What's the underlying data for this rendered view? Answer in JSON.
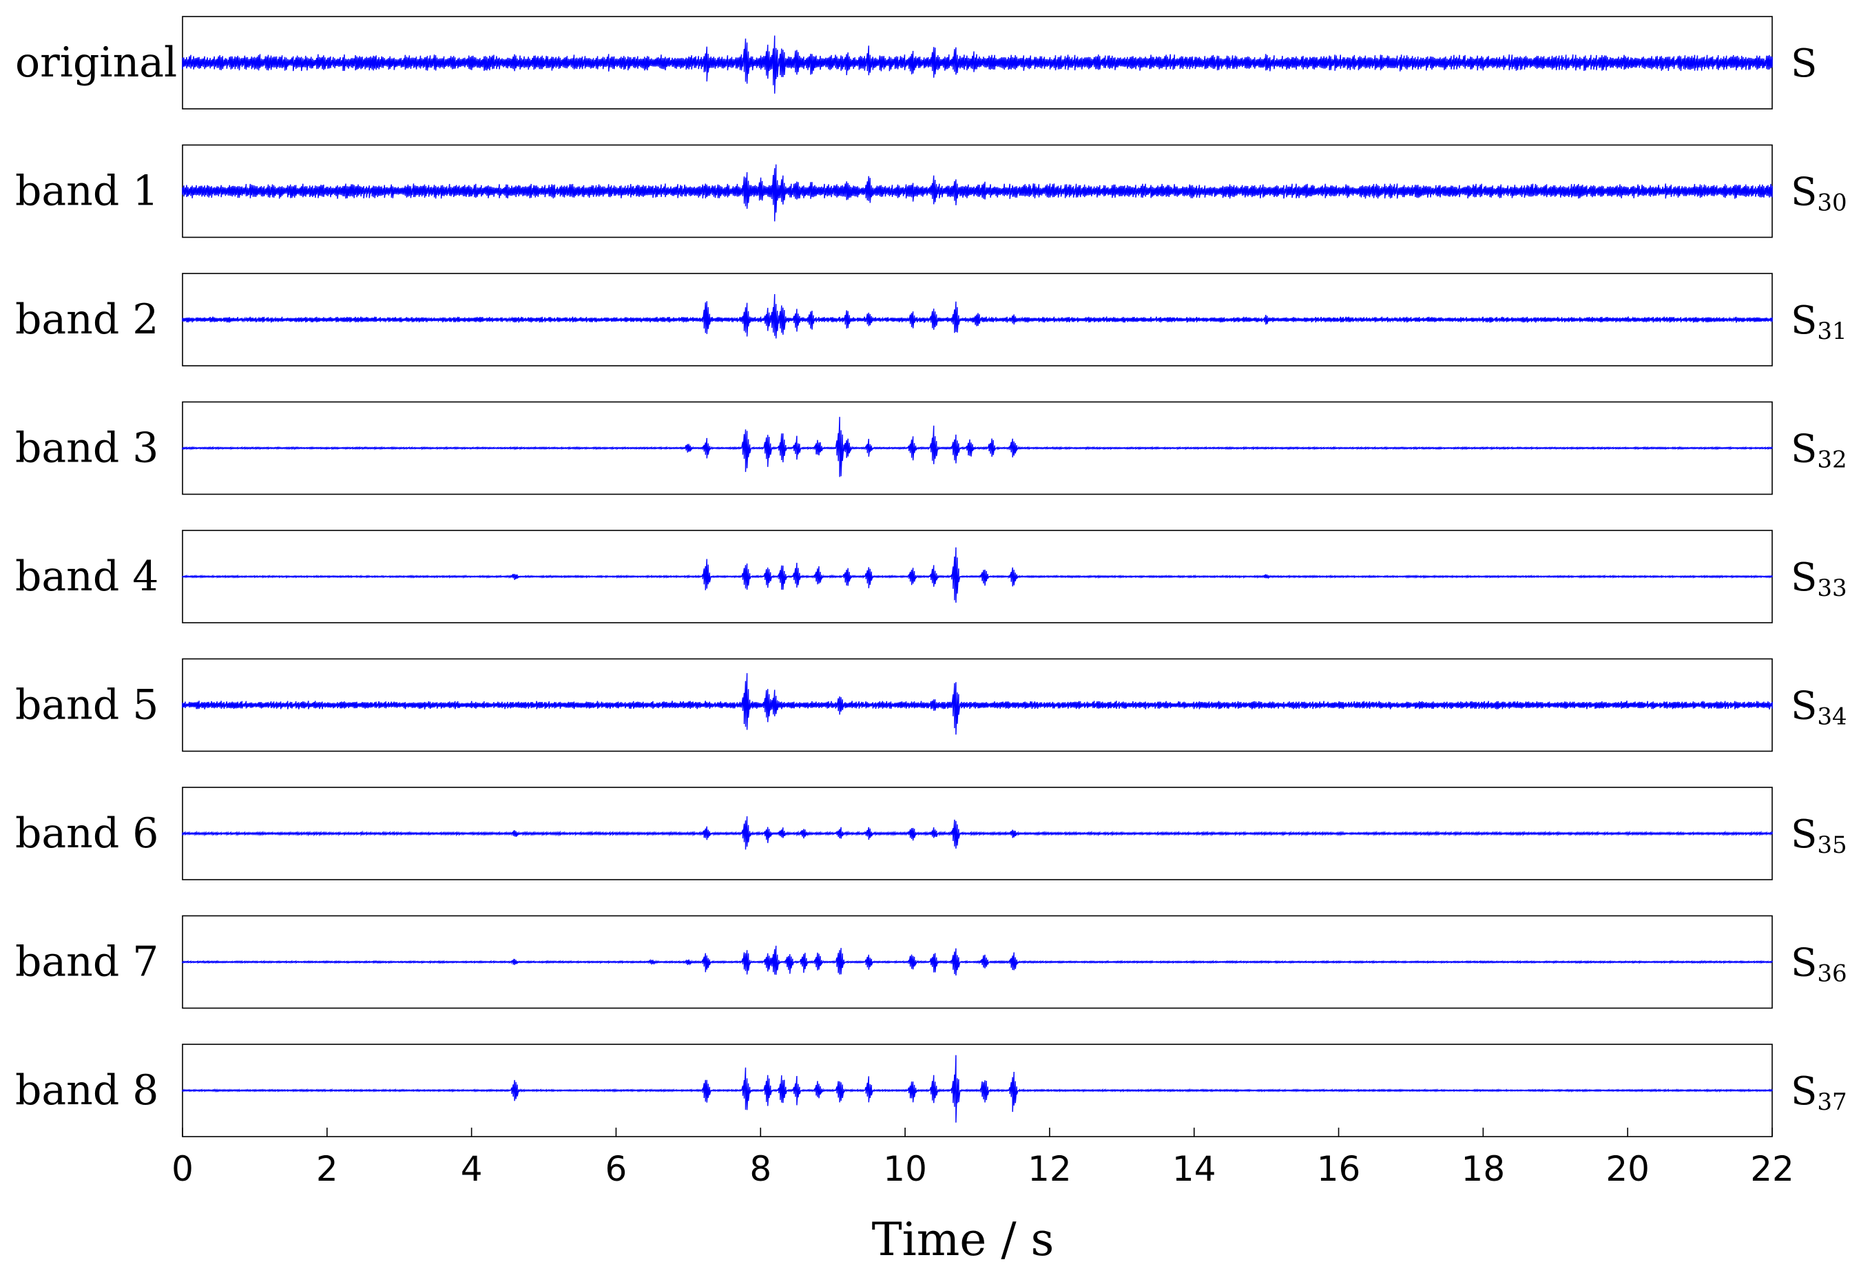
{
  "chart_data": {
    "type": "line",
    "title": "",
    "xlabel": "Time / s",
    "ylabel": "",
    "xlim": [
      0,
      22
    ],
    "x_ticks": [
      0,
      2,
      4,
      6,
      8,
      10,
      12,
      14,
      16,
      18,
      20,
      22
    ],
    "grid": false,
    "line_color": "#0000ff",
    "panels": [
      {
        "name": "original",
        "signal": "S",
        "subscript": "",
        "noise": 0.2,
        "spikes": [
          [
            4.6,
            0.25
          ],
          [
            7.25,
            0.55
          ],
          [
            7.8,
            0.75
          ],
          [
            8.1,
            0.55
          ],
          [
            8.2,
            0.95
          ],
          [
            8.3,
            0.6
          ],
          [
            8.5,
            0.45
          ],
          [
            8.7,
            0.4
          ],
          [
            9.2,
            0.35
          ],
          [
            9.5,
            0.45
          ],
          [
            10.1,
            0.4
          ],
          [
            10.4,
            0.55
          ],
          [
            10.7,
            0.5
          ],
          [
            10.95,
            0.3
          ],
          [
            11.2,
            0.25
          ],
          [
            11.5,
            0.2
          ],
          [
            15.0,
            0.2
          ],
          [
            20.0,
            0.15
          ],
          [
            21.3,
            0.15
          ]
        ]
      },
      {
        "name": "band 1",
        "signal": "S",
        "subscript": "30",
        "noise": 0.18,
        "spikes": [
          [
            7.25,
            0.3
          ],
          [
            7.8,
            0.7
          ],
          [
            8.0,
            0.4
          ],
          [
            8.2,
            0.85
          ],
          [
            8.3,
            0.5
          ],
          [
            8.5,
            0.35
          ],
          [
            8.7,
            0.3
          ],
          [
            9.2,
            0.3
          ],
          [
            9.5,
            0.45
          ],
          [
            10.1,
            0.3
          ],
          [
            10.4,
            0.5
          ],
          [
            10.7,
            0.35
          ],
          [
            11.1,
            0.25
          ],
          [
            15.0,
            0.15
          ],
          [
            20.0,
            0.12
          ]
        ]
      },
      {
        "name": "band 2",
        "signal": "S",
        "subscript": "31",
        "noise": 0.07,
        "spikes": [
          [
            7.25,
            0.65
          ],
          [
            7.8,
            0.55
          ],
          [
            8.1,
            0.35
          ],
          [
            8.2,
            0.75
          ],
          [
            8.3,
            0.5
          ],
          [
            8.5,
            0.35
          ],
          [
            8.7,
            0.3
          ],
          [
            9.2,
            0.3
          ],
          [
            9.5,
            0.25
          ],
          [
            10.1,
            0.25
          ],
          [
            10.4,
            0.4
          ],
          [
            10.7,
            0.5
          ],
          [
            11.0,
            0.25
          ],
          [
            11.5,
            0.15
          ],
          [
            15.0,
            0.15
          ],
          [
            20.0,
            0.1
          ]
        ]
      },
      {
        "name": "band 3",
        "signal": "S",
        "subscript": "32",
        "noise": 0.02,
        "spikes": [
          [
            7.0,
            0.15
          ],
          [
            7.25,
            0.3
          ],
          [
            7.8,
            0.8
          ],
          [
            8.1,
            0.45
          ],
          [
            8.3,
            0.45
          ],
          [
            8.5,
            0.35
          ],
          [
            8.8,
            0.3
          ],
          [
            9.1,
            1.0
          ],
          [
            9.2,
            0.3
          ],
          [
            9.5,
            0.25
          ],
          [
            10.1,
            0.35
          ],
          [
            10.4,
            0.55
          ],
          [
            10.7,
            0.45
          ],
          [
            10.9,
            0.3
          ],
          [
            11.2,
            0.3
          ],
          [
            11.5,
            0.35
          ]
        ]
      },
      {
        "name": "band 4",
        "signal": "S",
        "subscript": "33",
        "noise": 0.02,
        "spikes": [
          [
            4.6,
            0.12
          ],
          [
            7.25,
            0.55
          ],
          [
            7.8,
            0.5
          ],
          [
            8.1,
            0.35
          ],
          [
            8.3,
            0.4
          ],
          [
            8.5,
            0.35
          ],
          [
            8.8,
            0.3
          ],
          [
            9.2,
            0.3
          ],
          [
            9.5,
            0.35
          ],
          [
            10.1,
            0.3
          ],
          [
            10.4,
            0.35
          ],
          [
            10.7,
            0.8
          ],
          [
            11.1,
            0.3
          ],
          [
            11.5,
            0.3
          ],
          [
            15.0,
            0.08
          ]
        ]
      },
      {
        "name": "band 5",
        "signal": "S",
        "subscript": "34",
        "noise": 0.1,
        "spikes": [
          [
            7.25,
            0.15
          ],
          [
            7.8,
            0.95
          ],
          [
            8.1,
            0.55
          ],
          [
            8.2,
            0.45
          ],
          [
            9.1,
            0.3
          ],
          [
            10.4,
            0.2
          ],
          [
            10.7,
            0.95
          ]
        ]
      },
      {
        "name": "band 6",
        "signal": "S",
        "subscript": "35",
        "noise": 0.03,
        "spikes": [
          [
            4.6,
            0.1
          ],
          [
            7.25,
            0.25
          ],
          [
            7.8,
            0.6
          ],
          [
            8.1,
            0.25
          ],
          [
            8.3,
            0.2
          ],
          [
            8.6,
            0.15
          ],
          [
            9.1,
            0.2
          ],
          [
            9.5,
            0.2
          ],
          [
            10.1,
            0.25
          ],
          [
            10.4,
            0.2
          ],
          [
            10.7,
            0.55
          ],
          [
            11.5,
            0.15
          ]
        ]
      },
      {
        "name": "band 7",
        "signal": "S",
        "subscript": "36",
        "noise": 0.02,
        "spikes": [
          [
            4.6,
            0.1
          ],
          [
            6.5,
            0.08
          ],
          [
            7.0,
            0.1
          ],
          [
            7.25,
            0.3
          ],
          [
            7.8,
            0.45
          ],
          [
            8.1,
            0.3
          ],
          [
            8.2,
            0.55
          ],
          [
            8.4,
            0.35
          ],
          [
            8.6,
            0.3
          ],
          [
            8.8,
            0.3
          ],
          [
            9.1,
            0.55
          ],
          [
            9.5,
            0.25
          ],
          [
            10.1,
            0.3
          ],
          [
            10.4,
            0.35
          ],
          [
            10.7,
            0.5
          ],
          [
            11.1,
            0.25
          ],
          [
            11.5,
            0.3
          ]
        ]
      },
      {
        "name": "band 8",
        "signal": "S",
        "subscript": "37",
        "noise": 0.02,
        "spikes": [
          [
            4.6,
            0.35
          ],
          [
            7.25,
            0.5
          ],
          [
            7.8,
            0.65
          ],
          [
            8.1,
            0.45
          ],
          [
            8.3,
            0.5
          ],
          [
            8.5,
            0.35
          ],
          [
            8.8,
            0.3
          ],
          [
            9.1,
            0.4
          ],
          [
            9.5,
            0.35
          ],
          [
            10.1,
            0.4
          ],
          [
            10.4,
            0.45
          ],
          [
            10.7,
            0.95
          ],
          [
            11.1,
            0.5
          ],
          [
            11.5,
            0.65
          ]
        ]
      }
    ]
  }
}
